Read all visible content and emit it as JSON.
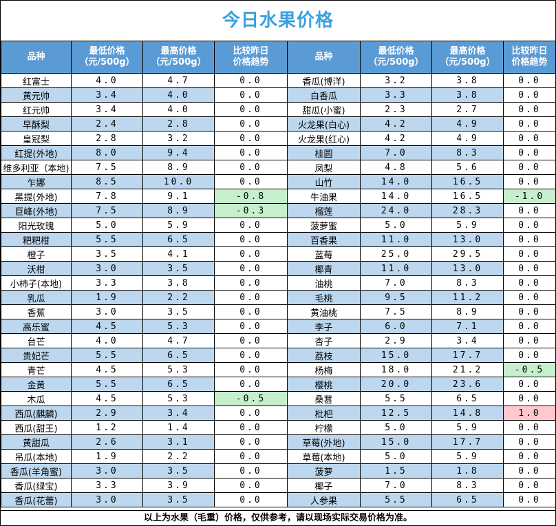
{
  "title": "今日水果价格",
  "headers": {
    "name": "品种",
    "low": "最低价格\n（元/500g）",
    "high": "最高价格\n（元/500g）",
    "trend": "比较昨日\n价格趋势"
  },
  "footer": "以上为水果（毛重）价格，仅供参考，请以现场实际交易价格为准。",
  "left": [
    {
      "name": "红富士",
      "low": "4.0",
      "high": "4.7",
      "trend": "0.0"
    },
    {
      "name": "黄元帅",
      "low": "3.4",
      "high": "4.0",
      "trend": "0.0"
    },
    {
      "name": "红元帅",
      "low": "3.4",
      "high": "4.0",
      "trend": "0.0"
    },
    {
      "name": "早酥梨",
      "low": "2.4",
      "high": "2.8",
      "trend": "0.0"
    },
    {
      "name": "皇冠梨",
      "low": "2.8",
      "high": "3.2",
      "trend": "0.0"
    },
    {
      "name": "红提(外地)",
      "low": "8.0",
      "high": "9.4",
      "trend": "0.0"
    },
    {
      "name": "维多利亚（本地)",
      "low": "7.5",
      "high": "8.9",
      "trend": "0.0"
    },
    {
      "name": "乍娜",
      "low": "8.5",
      "high": "10.0",
      "trend": "0.0"
    },
    {
      "name": "黑提(外地)",
      "low": "7.8",
      "high": "9.1",
      "trend": "-0.8"
    },
    {
      "name": "巨峰(外地)",
      "low": "7.5",
      "high": "8.9",
      "trend": "-0.3"
    },
    {
      "name": "阳光玫瑰",
      "low": "5.0",
      "high": "5.9",
      "trend": "0.0"
    },
    {
      "name": "粑粑柑",
      "low": "5.5",
      "high": "6.5",
      "trend": "0.0"
    },
    {
      "name": "橙子",
      "low": "3.5",
      "high": "4.1",
      "trend": "0.0"
    },
    {
      "name": "沃柑",
      "low": "3.0",
      "high": "3.5",
      "trend": "0.0"
    },
    {
      "name": "小柿子(本地)",
      "low": "3.3",
      "high": "3.8",
      "trend": "0.0"
    },
    {
      "name": "乳瓜",
      "low": "1.9",
      "high": "2.2",
      "trend": "0.0"
    },
    {
      "name": "香蕉",
      "low": "3.0",
      "high": "3.5",
      "trend": "0.0"
    },
    {
      "name": "高乐蜜",
      "low": "4.5",
      "high": "5.3",
      "trend": "0.0"
    },
    {
      "name": "台芒",
      "low": "4.0",
      "high": "4.7",
      "trend": "0.0"
    },
    {
      "name": "贵妃芒",
      "low": "5.5",
      "high": "6.5",
      "trend": "0.0"
    },
    {
      "name": "青芒",
      "low": "4.5",
      "high": "5.3",
      "trend": "0.0"
    },
    {
      "name": "金黄",
      "low": "5.5",
      "high": "6.5",
      "trend": "0.0"
    },
    {
      "name": "木瓜",
      "low": "4.5",
      "high": "5.3",
      "trend": "-0.5"
    },
    {
      "name": "西瓜(麒麟)",
      "low": "2.9",
      "high": "3.4",
      "trend": "0.0"
    },
    {
      "name": "西瓜(甜王)",
      "low": "1.2",
      "high": "1.4",
      "trend": "0.0"
    },
    {
      "name": "黄甜瓜",
      "low": "2.6",
      "high": "3.1",
      "trend": "0.0"
    },
    {
      "name": "吊瓜(本地)",
      "low": "1.9",
      "high": "2.2",
      "trend": "0.0"
    },
    {
      "name": "香瓜(羊角蜜)",
      "low": "3.0",
      "high": "3.5",
      "trend": "0.0"
    },
    {
      "name": "香瓜(绿宝)",
      "low": "3.3",
      "high": "3.9",
      "trend": "0.0"
    },
    {
      "name": "香瓜(花蕾)",
      "low": "3.0",
      "high": "3.5",
      "trend": "0.0"
    }
  ],
  "right": [
    {
      "name": "香瓜(博洋)",
      "low": "3.2",
      "high": "3.8",
      "trend": "0.0"
    },
    {
      "name": "白香瓜",
      "low": "3.3",
      "high": "3.8",
      "trend": "0.0"
    },
    {
      "name": "甜瓜(小蜜)",
      "low": "2.3",
      "high": "2.7",
      "trend": "0.0"
    },
    {
      "name": "火龙果(白心)",
      "low": "4.2",
      "high": "4.9",
      "trend": "0.0"
    },
    {
      "name": "火龙果(红心)",
      "low": "4.2",
      "high": "4.9",
      "trend": "0.0"
    },
    {
      "name": "桂圆",
      "low": "7.0",
      "high": "8.3",
      "trend": "0.0"
    },
    {
      "name": "凤梨",
      "low": "4.8",
      "high": "5.6",
      "trend": "0.0"
    },
    {
      "name": "山竹",
      "low": "14.0",
      "high": "16.5",
      "trend": "0.0"
    },
    {
      "name": "牛油果",
      "low": "14.0",
      "high": "16.5",
      "trend": "-1.0"
    },
    {
      "name": "榴莲",
      "low": "24.0",
      "high": "28.3",
      "trend": "0.0"
    },
    {
      "name": "菠萝蜜",
      "low": "5.0",
      "high": "5.9",
      "trend": "0.0"
    },
    {
      "name": "百香果",
      "low": "11.0",
      "high": "13.0",
      "trend": "0.0"
    },
    {
      "name": "蓝莓",
      "low": "25.0",
      "high": "29.5",
      "trend": "0.0"
    },
    {
      "name": "椰青",
      "low": "11.0",
      "high": "13.0",
      "trend": "0.0"
    },
    {
      "name": "油桃",
      "low": "7.0",
      "high": "8.3",
      "trend": "0.0"
    },
    {
      "name": "毛桃",
      "low": "9.5",
      "high": "11.2",
      "trend": "0.0"
    },
    {
      "name": "黄油桃",
      "low": "7.5",
      "high": "8.9",
      "trend": "0.0"
    },
    {
      "name": "李子",
      "low": "6.0",
      "high": "7.1",
      "trend": "0.0"
    },
    {
      "name": "杏子",
      "low": "2.9",
      "high": "3.4",
      "trend": "0.0"
    },
    {
      "name": "荔枝",
      "low": "15.0",
      "high": "17.7",
      "trend": "0.0"
    },
    {
      "name": "杨梅",
      "low": "18.0",
      "high": "21.2",
      "trend": "-0.5"
    },
    {
      "name": "樱桃",
      "low": "20.0",
      "high": "23.6",
      "trend": "0.0"
    },
    {
      "name": "桑葚",
      "low": "5.5",
      "high": "6.5",
      "trend": "0.0"
    },
    {
      "name": "枇杷",
      "low": "12.5",
      "high": "14.8",
      "trend": "1.0"
    },
    {
      "name": "柠檬",
      "low": "5.0",
      "high": "5.9",
      "trend": "0.0"
    },
    {
      "name": "草莓(外地)",
      "low": "15.0",
      "high": "17.7",
      "trend": "0.0"
    },
    {
      "name": "草莓(本地)",
      "low": "5.0",
      "high": "5.9",
      "trend": "0.0"
    },
    {
      "name": "菠萝",
      "low": "1.5",
      "high": "1.8",
      "trend": "0.0"
    },
    {
      "name": "椰子",
      "low": "7.0",
      "high": "8.3",
      "trend": "0.0"
    },
    {
      "name": "人参果",
      "low": "5.5",
      "high": "6.5",
      "trend": "0.0"
    }
  ]
}
